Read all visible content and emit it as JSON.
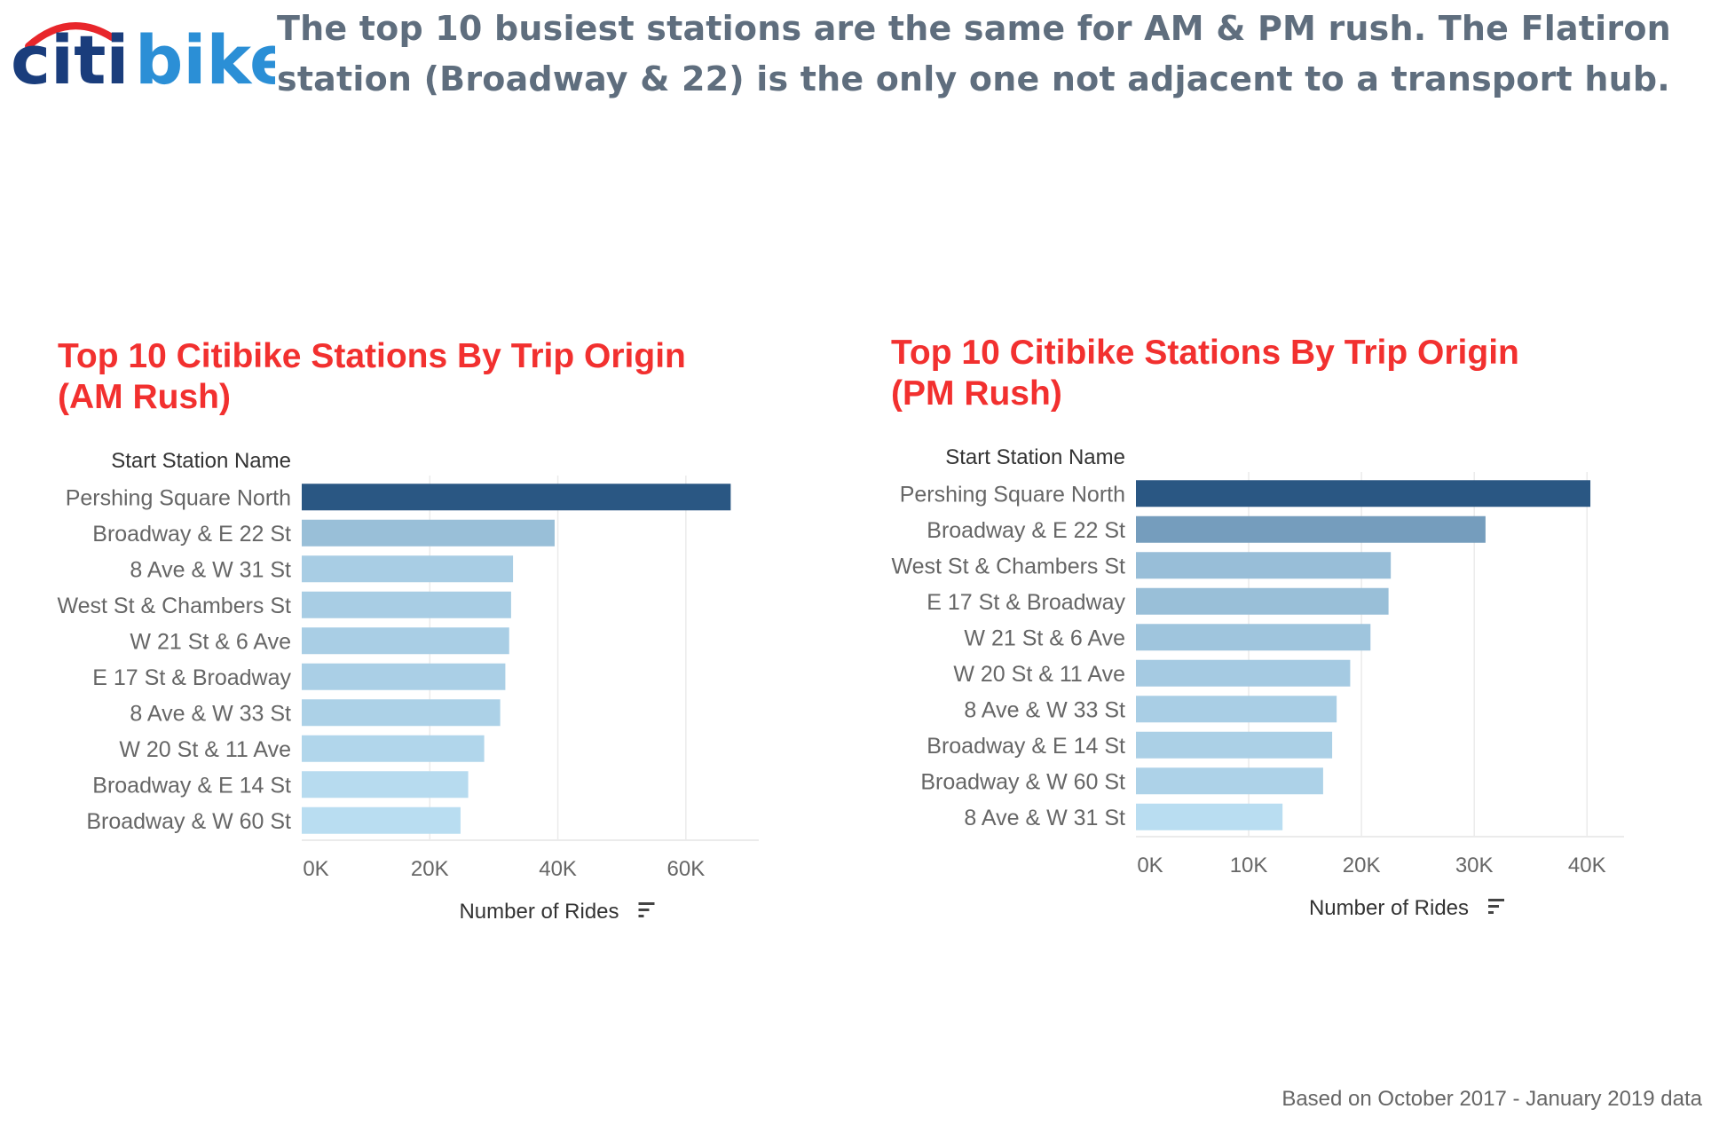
{
  "logo": {
    "citi_text": "citi",
    "bike_text": "bike",
    "citi_color": "#1a3d7c",
    "bike_color": "#2b8fd6",
    "arc_color": "#e8262b"
  },
  "headline": {
    "line1": "The top 10 busiest stations are the same for AM & PM rush.  The Flatiron",
    "line2": "station (Broadway & 22) is the only one not adjacent to a transport hub."
  },
  "footnote": "Based on October 2017 -  January 2019 data",
  "colors": {
    "title": "#f2302f",
    "headline": "#5f6e7e",
    "bar_dark": "#2a5783",
    "bar_light": "#b9ddf1",
    "axis_text": "#666666",
    "grid": "#ebebeb"
  },
  "chart_data": [
    {
      "type": "bar",
      "orientation": "horizontal",
      "title_line1": "Top 10 Citibike Stations By Trip Origin",
      "title_line2": "(AM Rush)",
      "row_header": "Start Station Name",
      "xlabel": "Number of Rides",
      "sort_icon": "sort-descending-icon",
      "xlim": [
        0,
        70000
      ],
      "ticks": [
        0,
        20000,
        40000,
        60000
      ],
      "tick_labels": [
        "0K",
        "20K",
        "40K",
        "60K"
      ],
      "grid": true,
      "categories": [
        "Pershing Square North",
        "Broadway & E 22 St",
        "8 Ave & W 31 St",
        "West St & Chambers St",
        "W 21 St & 6 Ave",
        "E 17 St & Broadway",
        "8 Ave & W 33 St",
        "W 20 St & 11 Ave",
        "Broadway & E 14 St",
        "Broadway & W 60 St"
      ],
      "values": [
        67000,
        39500,
        33000,
        32700,
        32400,
        31800,
        31000,
        28500,
        26000,
        24800
      ]
    },
    {
      "type": "bar",
      "orientation": "horizontal",
      "title_line1": "Top 10 Citibike Stations By Trip Origin",
      "title_line2": "(PM Rush)",
      "row_header": "Start Station Name",
      "xlabel": "Number of Rides",
      "sort_icon": "sort-descending-icon",
      "xlim": [
        0,
        42500
      ],
      "ticks": [
        0,
        10000,
        20000,
        30000,
        40000
      ],
      "tick_labels": [
        "0K",
        "10K",
        "20K",
        "30K",
        "40K"
      ],
      "grid": true,
      "categories": [
        "Pershing Square North",
        "Broadway & E 22 St",
        "West St & Chambers St",
        "E 17 St & Broadway",
        "W 21 St & 6 Ave",
        "W 20 St & 11 Ave",
        "8 Ave & W 33 St",
        "Broadway & E 14 St",
        "Broadway & W 60 St",
        "8 Ave & W 31 St"
      ],
      "values": [
        40300,
        31000,
        22600,
        22400,
        20800,
        19000,
        17800,
        17400,
        16600,
        13000
      ]
    }
  ]
}
